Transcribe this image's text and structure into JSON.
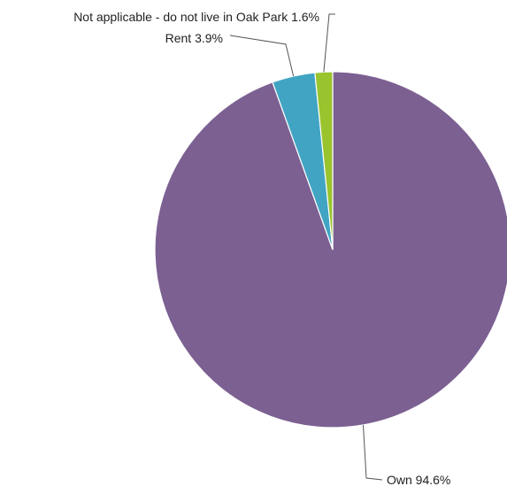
{
  "chart_data": {
    "type": "pie",
    "start_angle_deg": 0,
    "direction": "clockwise",
    "legend": "none",
    "slices": [
      {
        "label": "Own",
        "value": 94.6,
        "display": "Own 94.6%",
        "color": "#7c6092"
      },
      {
        "label": "Rent",
        "value": 3.9,
        "display": "Rent 3.9%",
        "color": "#41a4c3"
      },
      {
        "label": "Not applicable - do not live in Oak Park",
        "value": 1.6,
        "display": "Not applicable - do not live in Oak Park 1.6%",
        "color": "#99c42e"
      }
    ]
  }
}
